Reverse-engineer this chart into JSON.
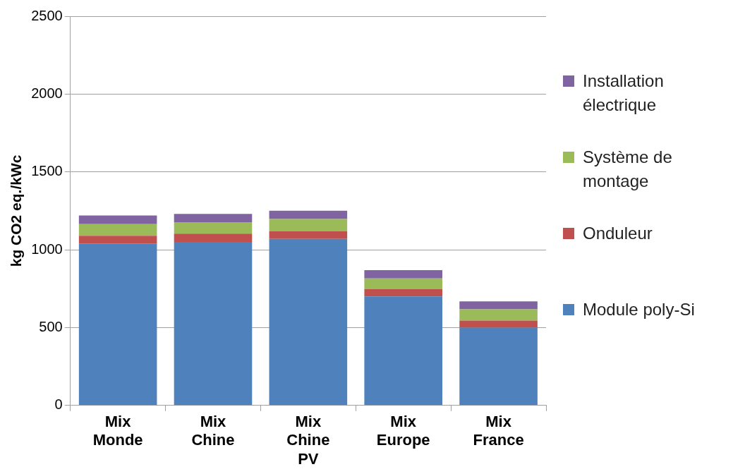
{
  "chart_data": {
    "type": "bar",
    "stacked": true,
    "ylabel": "kg CO2 eq./kWc",
    "categories": [
      "Mix Monde",
      "Mix Chine",
      "Mix Chine PV",
      "Mix Europe",
      "Mix France"
    ],
    "series": [
      {
        "name": "Module poly-Si",
        "color": "#4f81bd",
        "values": [
          1040,
          1050,
          1070,
          700,
          500
        ]
      },
      {
        "name": "Onduleur",
        "color": "#c0504d",
        "values": [
          50,
          53,
          48,
          47,
          45
        ]
      },
      {
        "name": "Système de montage",
        "color": "#9bbb59",
        "values": [
          75,
          74,
          80,
          69,
          73
        ]
      },
      {
        "name": "Installation électrique",
        "color": "#8064a2",
        "values": [
          55,
          53,
          53,
          53,
          51
        ]
      }
    ],
    "ylim": [
      0,
      2500
    ],
    "yticks": [
      0,
      500,
      1000,
      1500,
      2000,
      2500
    ],
    "grid": "y",
    "legend": "right"
  }
}
